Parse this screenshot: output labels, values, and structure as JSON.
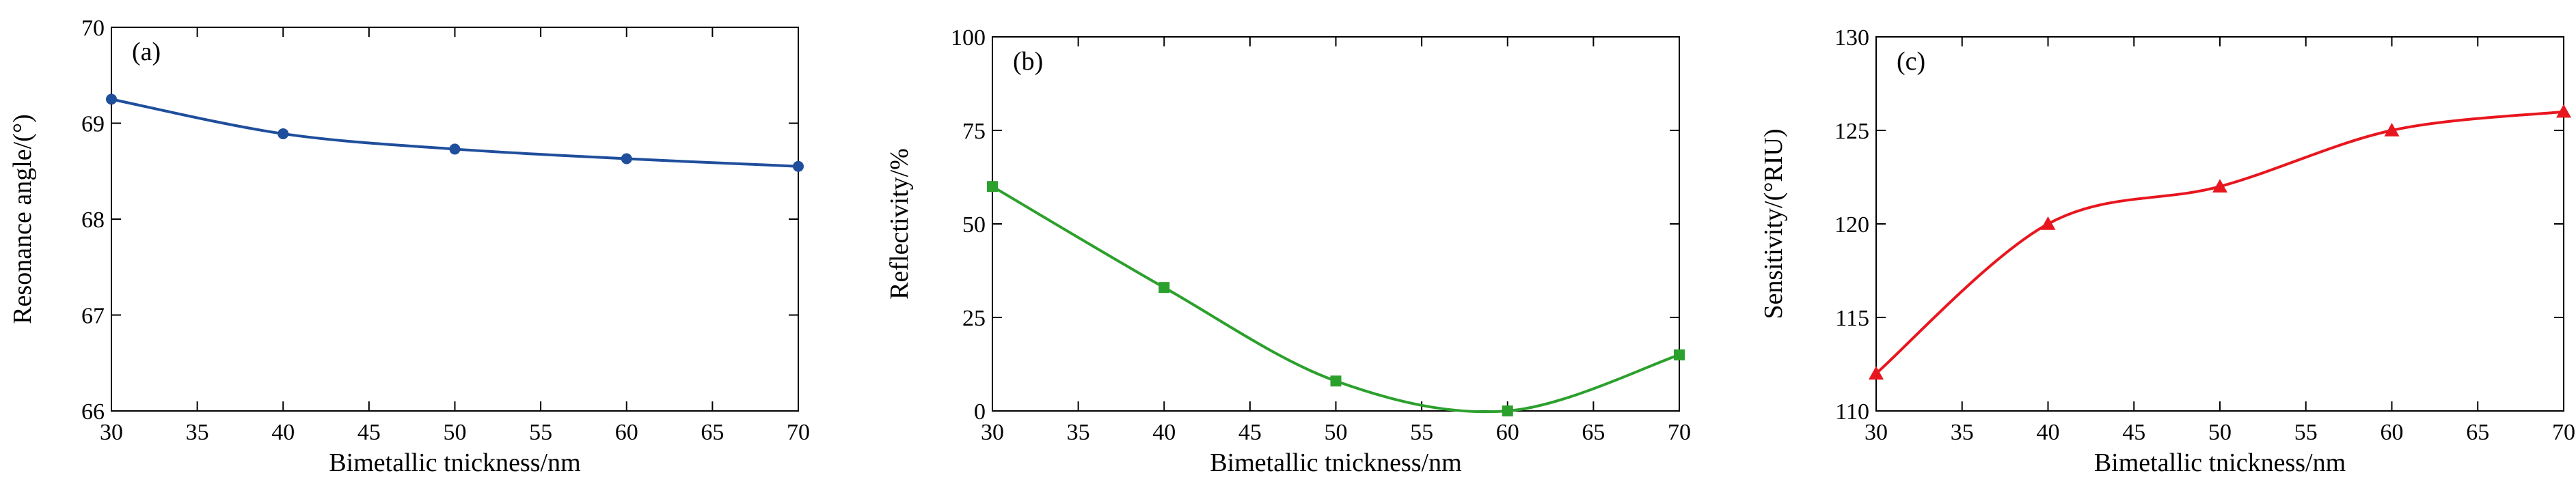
{
  "chart_data": [
    {
      "type": "line",
      "panel_label": "(a)",
      "xlabel": "Bimetallic tnickness/nm",
      "ylabel": "Resonance angle/(°)",
      "xlim": [
        30,
        70
      ],
      "ylim": [
        66,
        70
      ],
      "xticks": [
        "30",
        "35",
        "40",
        "45",
        "50",
        "55",
        "60",
        "65",
        "70"
      ],
      "yticks": [
        "66",
        "67",
        "68",
        "69",
        "70"
      ],
      "marker": "circle",
      "color": "#1f4e9c",
      "x": [
        30,
        40,
        50,
        60,
        70
      ],
      "y": [
        69.25,
        68.89,
        68.73,
        68.63,
        68.55
      ]
    },
    {
      "type": "line",
      "panel_label": "(b)",
      "xlabel": "Bimetallic tnickness/nm",
      "ylabel": "Reflectivity/%",
      "xlim": [
        30,
        70
      ],
      "ylim": [
        0,
        100
      ],
      "xticks": [
        "30",
        "35",
        "40",
        "45",
        "50",
        "55",
        "60",
        "65",
        "70"
      ],
      "yticks": [
        "0",
        "25",
        "50",
        "75",
        "100"
      ],
      "marker": "square",
      "color": "#2ca02c",
      "x": [
        30,
        40,
        50,
        60,
        70
      ],
      "y": [
        60,
        33,
        8,
        0,
        15
      ]
    },
    {
      "type": "line",
      "panel_label": "(c)",
      "xlabel": "Bimetallic tnickness/nm",
      "ylabel": "Sensitivity/(°RIU)",
      "xlim": [
        30,
        70
      ],
      "ylim": [
        110,
        130
      ],
      "xticks": [
        "30",
        "35",
        "40",
        "45",
        "50",
        "55",
        "60",
        "65",
        "70"
      ],
      "yticks": [
        "110",
        "115",
        "120",
        "125",
        "130"
      ],
      "marker": "triangle",
      "color": "#e8161e",
      "x": [
        30,
        40,
        50,
        60,
        70
      ],
      "y": [
        112,
        120,
        122,
        125,
        126
      ]
    }
  ]
}
